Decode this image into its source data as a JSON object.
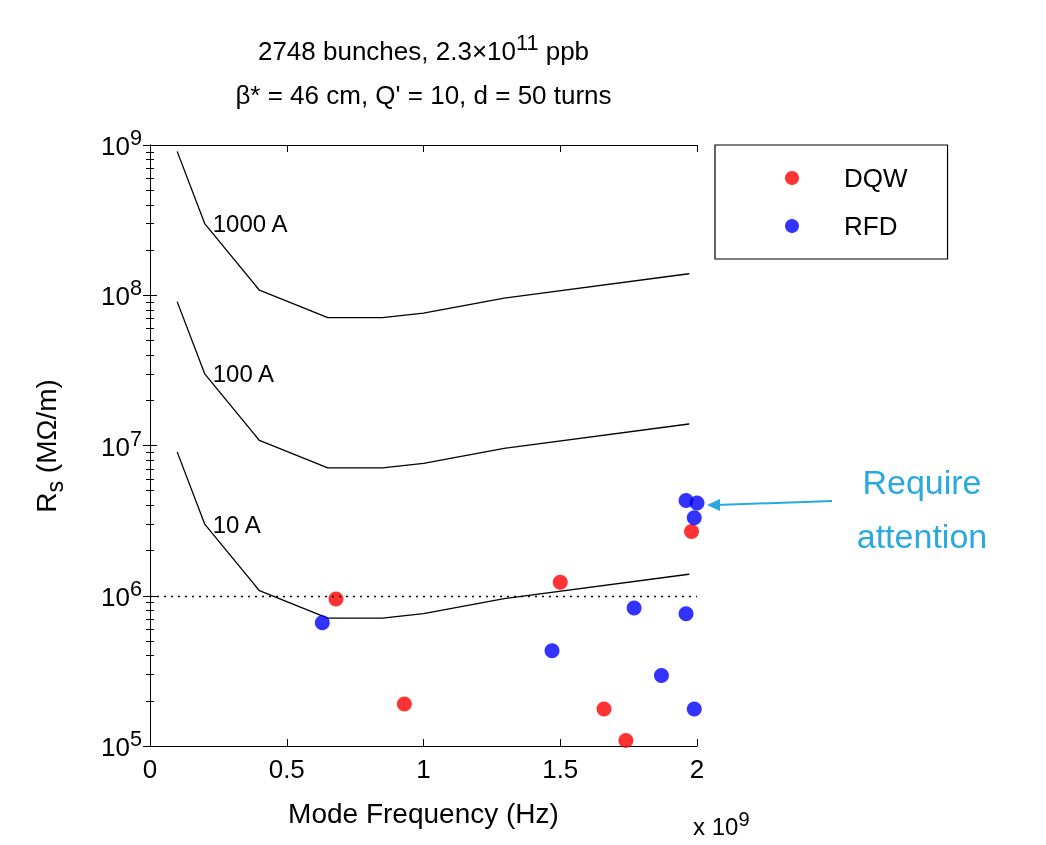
{
  "chart_data": {
    "type": "scatter",
    "title": "2748 bunches, 2.3×10$^{11}$ ppb",
    "subtitle": "β* = 46 cm, Q' = 10, d = 50 turns",
    "xlabel": "Mode Frequency (Hz)",
    "ylabel": "R$_{s}$ (MΩ/m)",
    "xlim": [
      0,
      2
    ],
    "xticks": [
      0,
      0.5,
      1,
      1.5,
      2
    ],
    "ylim": [
      100000,
      1000000000
    ],
    "log": "y",
    "yticks": [
      {
        "value": 100000,
        "label": "10$^{5}$"
      },
      {
        "value": 1000000,
        "label": "10$^{6}$"
      },
      {
        "value": 10000000,
        "label": "10$^{7}$"
      },
      {
        "value": 100000000,
        "label": "10$^{8}$"
      },
      {
        "value": 1000000000,
        "label": "10$^{9}$"
      }
    ],
    "grid": false,
    "legend": "right",
    "series": [
      {
        "name": "1000 A",
        "type": "line",
        "marker": "none",
        "color": "#000000",
        "line_style": "solid",
        "x": [
          0.1,
          0.2,
          0.4,
          0.65,
          0.85,
          1.0,
          1.3,
          1.97
        ],
        "values": [
          900000000,
          300000000,
          108000000,
          71000000,
          71000000,
          76000000,
          96000000,
          139000000
        ]
      },
      {
        "name": "100 A",
        "type": "line",
        "marker": "none",
        "color": "#000000",
        "line_style": "solid",
        "x": [
          0.1,
          0.2,
          0.4,
          0.65,
          0.85,
          1.0,
          1.3,
          1.97
        ],
        "values": [
          90000000,
          30000000,
          10800000,
          7100000,
          7100000,
          7600000,
          9600000,
          13900000
        ]
      },
      {
        "name": "10 A",
        "type": "line",
        "marker": "none",
        "color": "#000000",
        "line_style": "solid",
        "x": [
          0.1,
          0.2,
          0.4,
          0.65,
          0.85,
          1.0,
          1.3,
          1.97
        ],
        "values": [
          9000000,
          3000000,
          1080000,
          710000,
          710000,
          760000,
          960000,
          1390000
        ]
      },
      {
        "name": "DQW",
        "marker": "circle",
        "color": "#ff0000",
        "x": [
          0.68,
          0.93,
          1.5,
          1.66,
          1.74,
          1.98
        ],
        "values": [
          950000,
          190000,
          1230000,
          176000,
          109000,
          2680000
        ]
      },
      {
        "name": "RFD",
        "marker": "circle",
        "color": "#0000ff",
        "x": [
          0.63,
          1.47,
          1.77,
          1.87,
          1.96,
          1.99,
          1.96,
          2.0,
          1.99
        ],
        "values": [
          660000,
          430000,
          830000,
          295000,
          760000,
          176000,
          4300000,
          4150000,
          3300000
        ]
      }
    ],
    "ref_lines": [
      {
        "axis": "y",
        "value": 1000000,
        "color": "#000000",
        "line_style": "dotted"
      }
    ],
    "annotations": [
      "x 10$^{9}$",
      "Require attention"
    ]
  }
}
